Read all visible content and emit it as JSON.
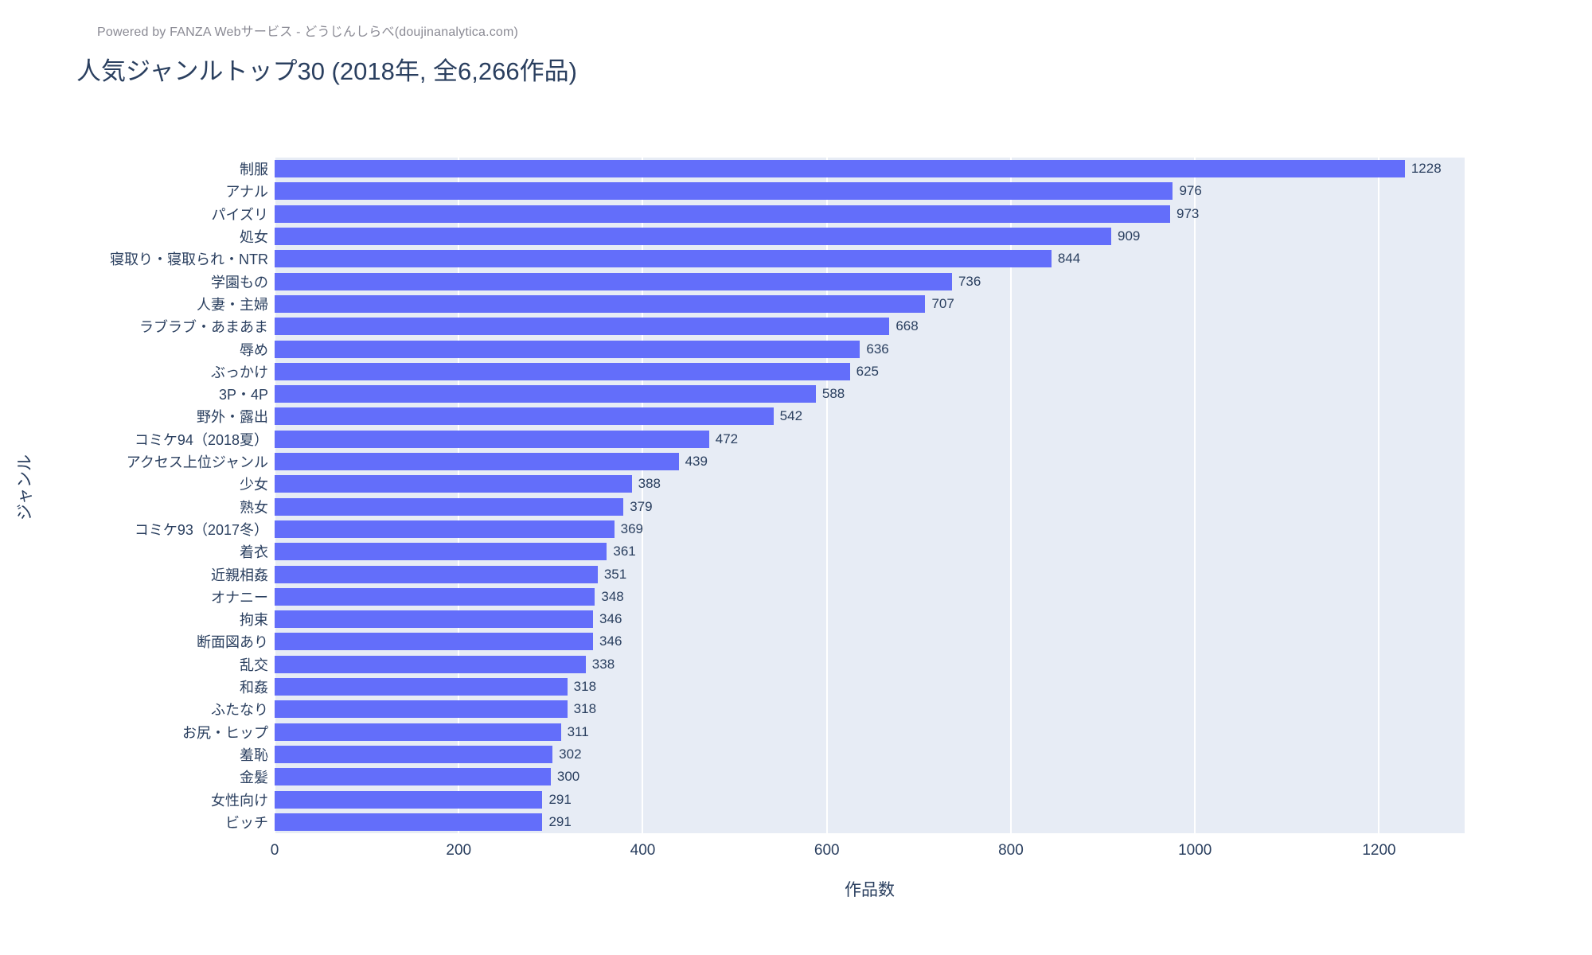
{
  "header": {
    "powered_by": "Powered by FANZA Webサービス - どうじんしらべ(doujinanalytica.com)",
    "title": "人気ジャンルトップ30 (2018年, 全6,266作品)"
  },
  "chart_data": {
    "type": "bar",
    "orientation": "horizontal",
    "title": "人気ジャンルトップ30 (2018年, 全6,266作品)",
    "xlabel": "作品数",
    "ylabel": "ジャンル",
    "xlim": [
      0,
      1293
    ],
    "xticks": [
      0,
      200,
      400,
      600,
      800,
      1000,
      1200
    ],
    "grid": true,
    "legend": "none",
    "categories": [
      "制服",
      "アナル",
      "パイズリ",
      "処女",
      "寝取り・寝取られ・NTR",
      "学園もの",
      "人妻・主婦",
      "ラブラブ・あまあま",
      "辱め",
      "ぶっかけ",
      "3P・4P",
      "野外・露出",
      "コミケ94（2018夏）",
      "アクセス上位ジャンル",
      "少女",
      "熟女",
      "コミケ93（2017冬）",
      "着衣",
      "近親相姦",
      "オナニー",
      "拘束",
      "断面図あり",
      "乱交",
      "和姦",
      "ふたなり",
      "お尻・ヒップ",
      "羞恥",
      "金髪",
      "女性向け",
      "ビッチ"
    ],
    "values": [
      1228,
      976,
      973,
      909,
      844,
      736,
      707,
      668,
      636,
      625,
      588,
      542,
      472,
      439,
      388,
      379,
      369,
      361,
      351,
      348,
      346,
      346,
      338,
      318,
      318,
      311,
      302,
      300,
      291,
      291
    ],
    "colors": {
      "bar": "#636EFA",
      "plot_background": "#E7ECF5",
      "gridline": "#FFFFFF",
      "text": "#2a3f5f",
      "subtitle_text": "#8a8a94"
    }
  }
}
